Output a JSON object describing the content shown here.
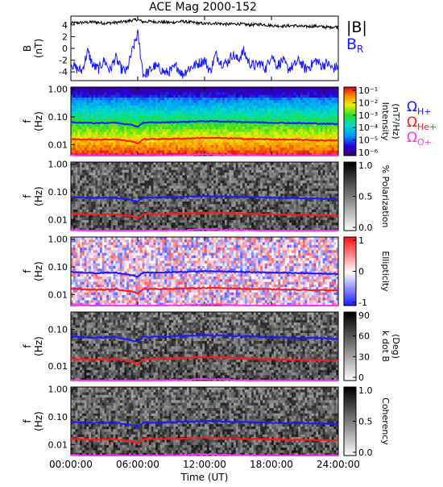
{
  "title": "ACE Mag 2000-152",
  "time_axis": {
    "label": "Time (UT)",
    "ticks": [
      "00:00:00",
      "06:00:00",
      "12:00:00",
      "18:00:00",
      "24:00:00"
    ],
    "range_hours": [
      0,
      24
    ]
  },
  "legend": {
    "b_total": {
      "label": "|B|",
      "color": "#000000"
    },
    "b_r": {
      "label": "B",
      "sub": "R",
      "color": "#1a1aff"
    },
    "gyro": [
      {
        "symbol": "Ω",
        "sub": "H+",
        "color": "#1a1aff"
      },
      {
        "symbol": "Ω",
        "sub": "He+",
        "color": "#ff1a1a"
      },
      {
        "symbol": "Ω",
        "sub": "O+",
        "color": "#ff33ff"
      }
    ]
  },
  "chart_data": [
    {
      "type": "line",
      "panel": "B",
      "ylabel": "B",
      "yunit": "(nT)",
      "yticks": [
        "4",
        "2",
        "0",
        "-2",
        "-4"
      ],
      "ylim": [
        -5.5,
        5.5
      ],
      "series": [
        {
          "name": "|B|",
          "color": "#000000",
          "x": [
            0,
            1,
            2,
            3,
            4,
            5,
            5.5,
            6,
            6.5,
            7,
            8,
            9,
            10,
            11,
            12,
            13,
            14,
            15,
            16,
            17,
            18,
            19,
            20,
            21,
            22,
            23,
            24
          ],
          "values": [
            4.3,
            4.4,
            4.5,
            4.3,
            4.4,
            4.6,
            4.8,
            4.9,
            4.5,
            4.6,
            4.5,
            4.4,
            4.6,
            4.4,
            4.2,
            4.3,
            4.1,
            4.2,
            4.0,
            4.1,
            3.9,
            3.8,
            3.9,
            3.7,
            3.8,
            3.6,
            3.7
          ]
        },
        {
          "name": "B",
          "color": "#1a1aff",
          "x": [
            0,
            0.5,
            1,
            1.5,
            2,
            2.5,
            3,
            3.5,
            4,
            4.5,
            5,
            5.5,
            6,
            6.5,
            7,
            7.5,
            8,
            8.5,
            9,
            9.5,
            10,
            10.5,
            11,
            11.5,
            12,
            12.5,
            13,
            13.5,
            14,
            14.5,
            15,
            15.5,
            16,
            16.5,
            17,
            17.5,
            18,
            18.5,
            19,
            19.5,
            20,
            20.5,
            21,
            21.5,
            22,
            22.5,
            23,
            23.5,
            24
          ],
          "values": [
            -2.5,
            -3.5,
            -3.8,
            -0.5,
            -3.0,
            -3.5,
            -2.0,
            -3.8,
            -1.5,
            -3.5,
            -4.0,
            -0.5,
            2.5,
            -4.5,
            -4.0,
            -3.0,
            -3.5,
            -4.2,
            -3.8,
            -3.0,
            -4.5,
            -3.5,
            -3.0,
            -2.5,
            -2.0,
            -4.0,
            -1.0,
            -2.5,
            -2.5,
            -1.0,
            -2.0,
            -0.5,
            -2.5,
            -3.0,
            -2.5,
            -3.5,
            -1.0,
            -3.0,
            -2.0,
            -3.5,
            -3.0,
            -2.0,
            -3.5,
            -3.0,
            -2.0,
            -3.0,
            -2.5,
            -3.5,
            -3.0
          ]
        }
      ]
    },
    {
      "type": "heatmap",
      "panel": "Intensity",
      "ylabel": "f",
      "yunit": "(Hz)",
      "yscale": "log",
      "ylim": [
        0.004,
        1.2
      ],
      "yticks": [
        "1.00",
        "0.10",
        "0.01"
      ],
      "colorbar": {
        "label": "Intensity",
        "unit": "(nT²/Hz)",
        "scale": "log",
        "ticks": [
          "10⁻¹",
          "10⁻²",
          "10⁻³",
          "10⁻⁴",
          "10⁻⁵",
          "10⁻⁶"
        ],
        "palette": "rainbow"
      }
    },
    {
      "type": "heatmap",
      "panel": "Polarization",
      "ylabel": "f",
      "yunit": "(Hz)",
      "yscale": "log",
      "ylim": [
        0.004,
        1.2
      ],
      "yticks": [
        "1.00",
        "0.10",
        "0.01"
      ],
      "colorbar": {
        "label": "% Polarization",
        "ticks": [
          "1.0",
          "0.5",
          "0.0"
        ],
        "palette": "gray"
      }
    },
    {
      "type": "heatmap",
      "panel": "Ellipticity",
      "ylabel": "f",
      "yunit": "(Hz)",
      "yscale": "log",
      "ylim": [
        0.004,
        1.2
      ],
      "yticks": [
        "1.00",
        "0.10",
        "0.01"
      ],
      "colorbar": {
        "label": "Ellipticity",
        "ticks": [
          "1",
          "0",
          "-1"
        ],
        "palette": "bluewhitered"
      }
    },
    {
      "type": "heatmap",
      "panel": "kdotB",
      "ylabel": "f",
      "yunit": "(Hz)",
      "yscale": "log",
      "ylim": [
        0.004,
        0.3
      ],
      "yticks": [
        "0.10",
        "0.01"
      ],
      "colorbar": {
        "label": "k dot B",
        "unit": "(Deg)",
        "ticks": [
          "90",
          "60",
          "30",
          "0"
        ],
        "palette": "gray"
      }
    },
    {
      "type": "heatmap",
      "panel": "Coherency",
      "ylabel": "f",
      "yunit": "(Hz)",
      "yscale": "log",
      "ylim": [
        0.004,
        1.2
      ],
      "yticks": [
        "1.00",
        "0.10",
        "0.01"
      ],
      "colorbar": {
        "label": "Coherency",
        "ticks": [
          "1.0",
          "0.5",
          "0.0"
        ],
        "palette": "gray"
      }
    }
  ],
  "gyro_lines": {
    "x": [
      0,
      2,
      4,
      5.5,
      6,
      6.5,
      8,
      10,
      12,
      14,
      16,
      18,
      20,
      22,
      24
    ],
    "H+": [
      0.065,
      0.06,
      0.062,
      0.05,
      0.045,
      0.062,
      0.063,
      0.066,
      0.07,
      0.068,
      0.065,
      0.062,
      0.06,
      0.058,
      0.055
    ],
    "He+": [
      0.016,
      0.015,
      0.0155,
      0.013,
      0.011,
      0.0155,
      0.016,
      0.0165,
      0.0175,
      0.017,
      0.016,
      0.0155,
      0.015,
      0.0145,
      0.014
    ],
    "O+": [
      0.0041,
      0.0038,
      0.0039,
      0.0033,
      0.0029,
      0.0039,
      0.004,
      0.0041,
      0.0044,
      0.0042,
      0.004,
      0.0039,
      0.0038,
      0.0036,
      0.0035
    ]
  }
}
